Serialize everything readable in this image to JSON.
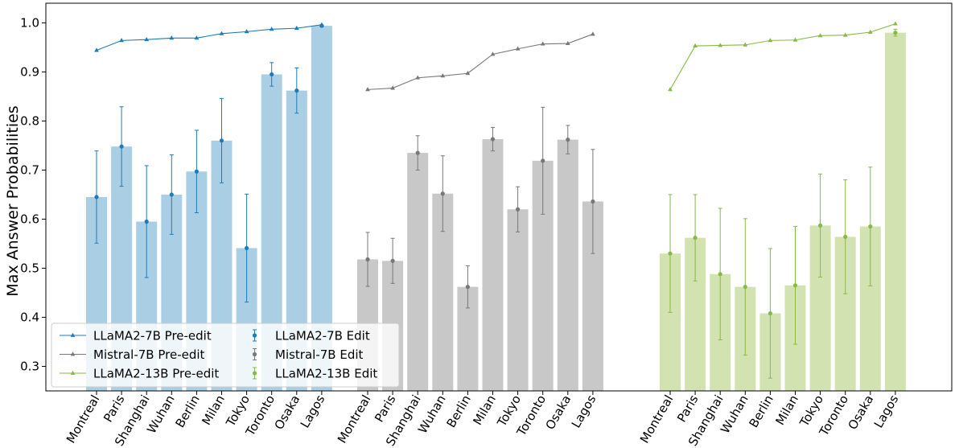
{
  "chart_data": {
    "type": "bar",
    "ylabel": "Max Answer Probabilities",
    "xlabel": "",
    "title": "",
    "ylim": [
      0.25,
      1.04
    ],
    "yticks": [
      0.3,
      0.4,
      0.5,
      0.6,
      0.7,
      0.8,
      0.9,
      1.0
    ],
    "ytick_labels": [
      "0.3",
      "0.4",
      "0.5",
      "0.6",
      "0.7",
      "0.8",
      "0.9",
      "1.0"
    ],
    "legend_position": "lower-left",
    "grid": false,
    "groups": [
      {
        "model": "LLaMA2-7B",
        "color": "#1f7ab8",
        "bar_color": "#aacfe5",
        "marker": "triangle",
        "categories": [
          "Montreal",
          "Paris",
          "Shanghai",
          "Wuhan",
          "Berlin",
          "Milan",
          "Tokyo",
          "Toronto",
          "Osaka",
          "Lagos"
        ],
        "pre_edit": [
          0.944,
          0.964,
          0.966,
          0.969,
          0.969,
          0.978,
          0.982,
          0.987,
          0.989,
          0.996
        ],
        "edit_mean": [
          0.645,
          0.748,
          0.595,
          0.65,
          0.697,
          0.76,
          0.541,
          0.895,
          0.862,
          0.994
        ],
        "edit_err": [
          0.094,
          0.081,
          0.114,
          0.081,
          0.084,
          0.086,
          0.11,
          0.024,
          0.046,
          0.002
        ]
      },
      {
        "model": "Mistral-7B",
        "color": "#787878",
        "bar_color": "#c8c8c8",
        "marker": "triangle",
        "categories": [
          "Montreal",
          "Paris",
          "Shanghai",
          "Wuhan",
          "Berlin",
          "Milan",
          "Tokyo",
          "Toronto",
          "Osaka",
          "Lagos"
        ],
        "pre_edit": [
          0.864,
          0.867,
          0.888,
          0.892,
          0.897,
          0.936,
          0.947,
          0.957,
          0.958,
          0.977
        ],
        "edit_mean": [
          0.518,
          0.515,
          0.735,
          0.652,
          0.462,
          0.763,
          0.62,
          0.719,
          0.762,
          0.636
        ],
        "edit_err": [
          0.055,
          0.046,
          0.035,
          0.077,
          0.043,
          0.024,
          0.046,
          0.109,
          0.029,
          0.106
        ]
      },
      {
        "model": "LLaMA2-13B",
        "color": "#86b946",
        "bar_color": "#d2e3b1",
        "marker": "triangle",
        "categories": [
          "Montreal",
          "Paris",
          "Shanghai",
          "Wuhan",
          "Berlin",
          "Milan",
          "Tokyo",
          "Toronto",
          "Osaka",
          "Lagos"
        ],
        "pre_edit": [
          0.864,
          0.953,
          0.954,
          0.955,
          0.964,
          0.965,
          0.974,
          0.975,
          0.981,
          0.998
        ],
        "edit_mean": [
          0.53,
          0.562,
          0.488,
          0.462,
          0.408,
          0.465,
          0.587,
          0.564,
          0.585,
          0.98
        ],
        "edit_err": [
          0.12,
          0.088,
          0.134,
          0.139,
          0.132,
          0.12,
          0.105,
          0.116,
          0.121,
          0.007
        ]
      }
    ],
    "legend": {
      "entries": [
        {
          "label": "LLaMA2-7B Pre-edit",
          "kind": "line",
          "group": 0
        },
        {
          "label": "LLaMA2-7B Edit",
          "kind": "errorbar",
          "group": 0
        },
        {
          "label": "Mistral-7B Pre-edit",
          "kind": "line",
          "group": 1
        },
        {
          "label": "Mistral-7B Edit",
          "kind": "errorbar",
          "group": 1
        },
        {
          "label": "LLaMA2-13B Pre-edit",
          "kind": "line",
          "group": 2
        },
        {
          "label": "LLaMA2-13B Edit",
          "kind": "errorbar",
          "group": 2
        }
      ]
    }
  }
}
